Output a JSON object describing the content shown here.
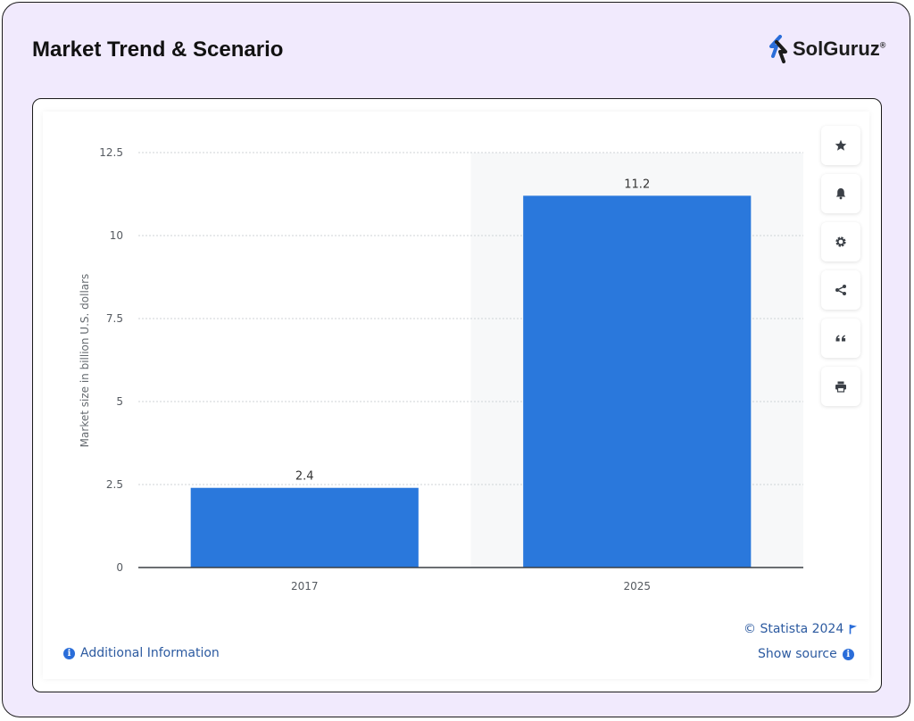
{
  "header": {
    "title": "Market Trend & Scenario",
    "brand": "SolGuruz",
    "brand_mark": "®"
  },
  "chart_data": {
    "type": "bar",
    "categories": [
      "2017",
      "2025"
    ],
    "values": [
      2.4,
      11.2
    ],
    "data_labels": [
      "2.4",
      "11.2"
    ],
    "title": "",
    "xlabel": "",
    "ylabel": "Market size in billion U.S. dollars",
    "ylim": [
      0,
      12.5
    ],
    "yticks": [
      0,
      2.5,
      5,
      7.5,
      10,
      12.5
    ],
    "ytick_labels": [
      "0",
      "2.5",
      "5",
      "7.5",
      "10",
      "12.5"
    ],
    "grid": true,
    "highlighted_category": "2025",
    "bar_color": "#2a78dc"
  },
  "toolbar": {
    "buttons": [
      {
        "icon": "star-icon",
        "label": "favorite"
      },
      {
        "icon": "bell-icon",
        "label": "notifications"
      },
      {
        "icon": "gear-icon",
        "label": "settings"
      },
      {
        "icon": "share-icon",
        "label": "share"
      },
      {
        "icon": "quote-icon",
        "label": "cite"
      },
      {
        "icon": "print-icon",
        "label": "print"
      }
    ]
  },
  "footer": {
    "copyright": "© Statista 2024",
    "show_source": "Show source",
    "additional_info": "Additional Information",
    "info_glyph": "i"
  },
  "colors": {
    "accent": "#2a6dd9",
    "background": "#f1eafd",
    "link": "#2c5aa0"
  }
}
